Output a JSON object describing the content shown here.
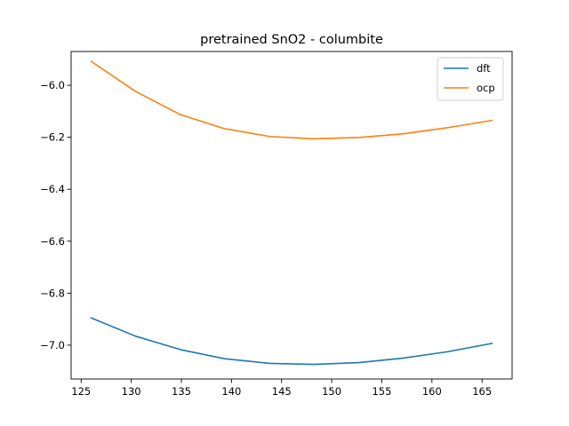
{
  "chart_data": {
    "type": "line",
    "title": "pretrained SnO2 - columbite",
    "xlabel": "",
    "ylabel": "",
    "xlim": [
      124.0,
      168.0
    ],
    "ylim": [
      -7.13,
      -5.87
    ],
    "xticks": [
      125,
      130,
      135,
      140,
      145,
      150,
      155,
      160,
      165
    ],
    "yticks": [
      -7.0,
      -6.8,
      -6.6,
      -6.4,
      -6.2,
      -6.0
    ],
    "xtick_labels": [
      "125",
      "130",
      "135",
      "140",
      "145",
      "150",
      "155",
      "160",
      "165"
    ],
    "ytick_labels": [
      "−7.0",
      "−6.8",
      "−6.6",
      "−6.4",
      "−6.2",
      "−6.0"
    ],
    "legend_position": "top-right",
    "x": [
      126.0,
      130.4,
      134.9,
      139.3,
      143.8,
      148.2,
      152.7,
      157.1,
      161.6,
      166.0
    ],
    "series": [
      {
        "name": "dft",
        "color": "#1f77b4",
        "values": [
          -6.895,
          -6.965,
          -7.017,
          -7.052,
          -7.07,
          -7.074,
          -7.067,
          -7.05,
          -7.025,
          -6.993
        ]
      },
      {
        "name": "ocp",
        "color": "#ff7f0e",
        "values": [
          -5.908,
          -6.023,
          -6.113,
          -6.167,
          -6.197,
          -6.206,
          -6.201,
          -6.187,
          -6.163,
          -6.135
        ]
      }
    ]
  }
}
